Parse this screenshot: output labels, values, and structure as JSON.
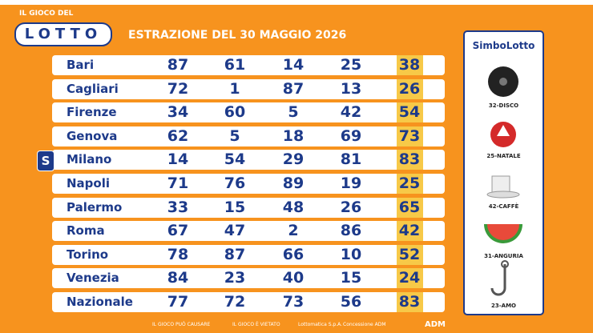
{
  "header": {
    "brand_top": "IL GIOCO DEL",
    "brand": "LOTTO",
    "title": "ESTRAZIONE DEL 30 MAGGIO 2026"
  },
  "table": {
    "rows": [
      [
        "Bari",
        "87",
        "61",
        "14",
        "25",
        "38"
      ],
      [
        "Cagliari",
        "72",
        "1",
        "87",
        "13",
        "26"
      ],
      [
        "Firenze",
        "34",
        "60",
        "5",
        "42",
        "54"
      ],
      [
        "Genova",
        "62",
        "5",
        "18",
        "69",
        "73"
      ],
      [
        "Milano",
        "14",
        "54",
        "29",
        "81",
        "83"
      ],
      [
        "Napoli",
        "71",
        "76",
        "89",
        "19",
        "25"
      ],
      [
        "Palermo",
        "33",
        "15",
        "48",
        "26",
        "65"
      ],
      [
        "Roma",
        "67",
        "47",
        "2",
        "86",
        "42"
      ],
      [
        "Torino",
        "78",
        "87",
        "66",
        "10",
        "52"
      ],
      [
        "Venezia",
        "84",
        "23",
        "40",
        "15",
        "24"
      ],
      [
        "Nazionale",
        "77",
        "72",
        "73",
        "56",
        "83"
      ]
    ]
  },
  "simbolotto": {
    "title": "SimboLotto",
    "items": [
      "32-DISCO",
      "25-NATALE",
      "42-CAFFÈ",
      "31-ANGURIA",
      "23-AMO"
    ]
  },
  "footer": [
    "IL GIOCO PUÒ CAUSARE",
    "IL GIOCO È VIETATO",
    "Lottomatica S.p.A.",
    "Concessione ADM",
    "ADM"
  ]
}
